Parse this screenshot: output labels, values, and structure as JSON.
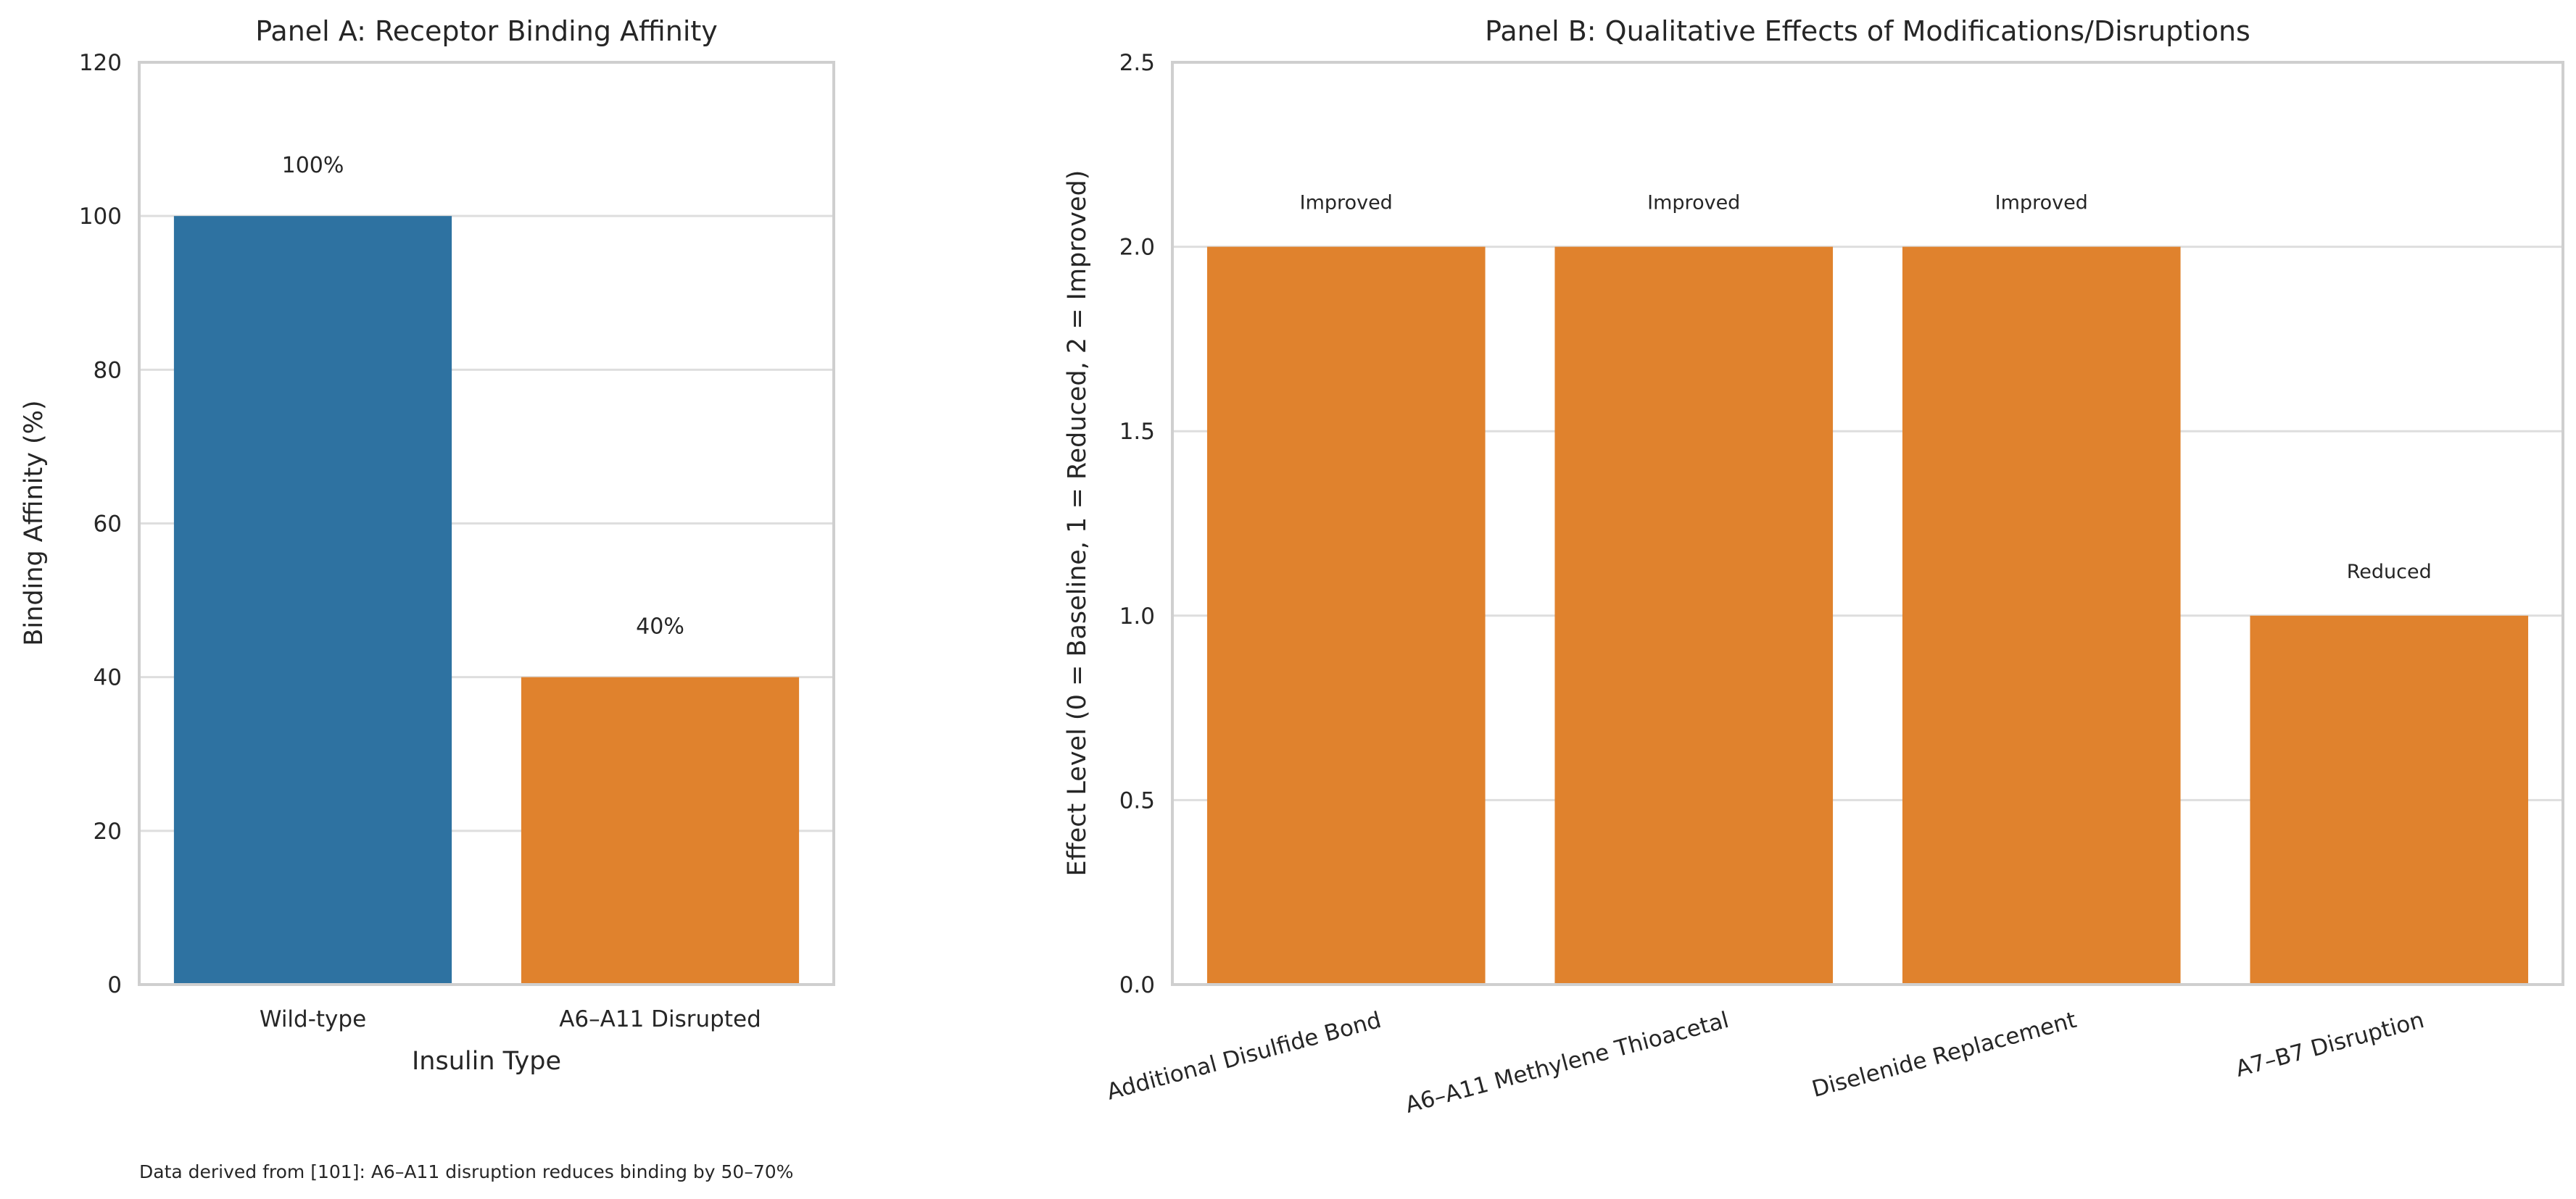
{
  "chart_data": [
    {
      "type": "bar",
      "title": "Panel A: Receptor Binding Affinity",
      "xlabel": "Insulin Type",
      "ylabel": "Binding Affinity (%)",
      "categories": [
        "Wild-type",
        "A6–A11 Disrupted"
      ],
      "values": [
        100,
        40
      ],
      "bar_colors": [
        "#2e72a1",
        "#e0822d"
      ],
      "data_labels": [
        "100%",
        "40%"
      ],
      "ylim": [
        0,
        120
      ],
      "yticks": [
        0,
        20,
        40,
        60,
        80,
        100,
        120
      ],
      "ytick_labels": [
        "0",
        "20",
        "40",
        "60",
        "80",
        "100",
        "120"
      ],
      "grid": true
    },
    {
      "type": "bar",
      "title": "Panel B: Qualitative Effects of Modifications/Disruptions",
      "xlabel": "",
      "ylabel": "Effect Level (0 = Baseline, 1 = Reduced, 2 = Improved)",
      "categories": [
        "Additional Disulfide Bond",
        "A6–A11 Methylene Thioacetal",
        "Diselenide Replacement",
        "A7–B7 Disruption"
      ],
      "values": [
        2,
        2,
        2,
        1
      ],
      "bar_colors": [
        "#e0822d",
        "#e0822d",
        "#e0822d",
        "#e0822d"
      ],
      "data_labels": [
        "Improved",
        "Improved",
        "Improved",
        "Reduced"
      ],
      "ylim": [
        0,
        2.5
      ],
      "yticks": [
        0,
        0.5,
        1,
        1.5,
        2,
        2.5
      ],
      "ytick_labels": [
        "0.0",
        "0.5",
        "1.0",
        "1.5",
        "2.0",
        "2.5"
      ],
      "xtick_rotation": 15,
      "grid": true
    }
  ],
  "footnote": "Data derived from [101]: A6–A11 disruption reduces binding by 50–70%"
}
